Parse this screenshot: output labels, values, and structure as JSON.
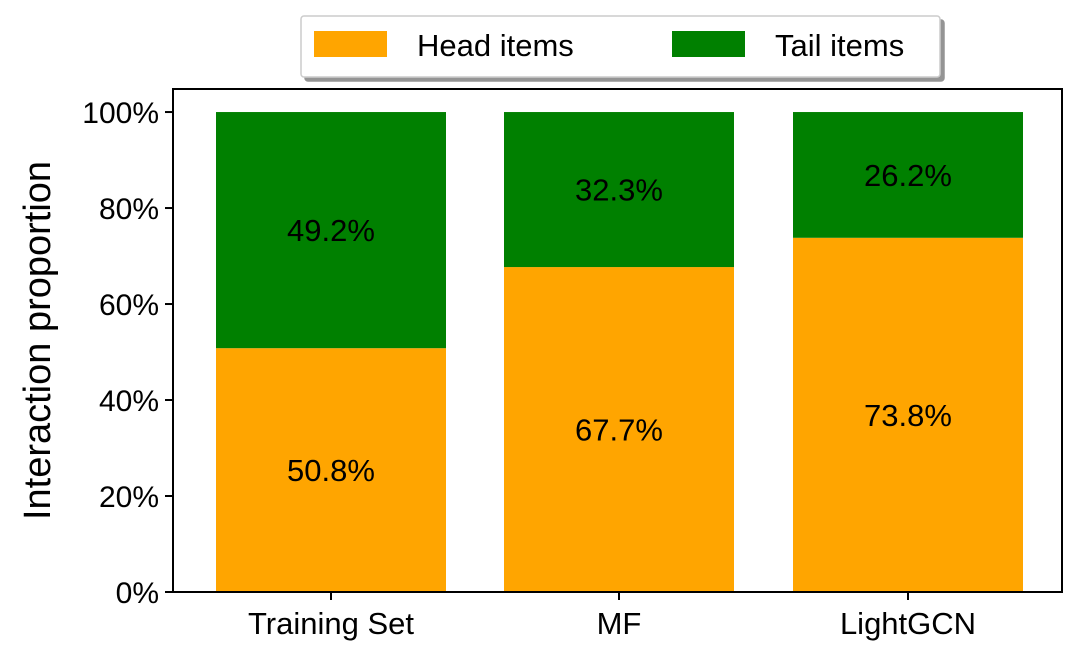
{
  "chart_data": {
    "type": "bar",
    "stacked": true,
    "categories": [
      "Training Set",
      "MF",
      "LightGCN"
    ],
    "series": [
      {
        "name": "Head items",
        "color": "#FFA500",
        "values": [
          50.8,
          67.7,
          73.8
        ],
        "labels": [
          "50.8%",
          "67.7%",
          "73.8%"
        ]
      },
      {
        "name": "Tail items",
        "color": "#008000",
        "values": [
          49.2,
          32.3,
          26.2
        ],
        "labels": [
          "49.2%",
          "32.3%",
          "26.2%"
        ]
      }
    ],
    "ylabel": "Interaction proportion",
    "xlabel": "",
    "ylim": [
      0,
      100
    ],
    "yticks": [
      0,
      20,
      40,
      60,
      80,
      100
    ],
    "ytick_labels": [
      "0%",
      "20%",
      "40%",
      "60%",
      "80%",
      "100%"
    ],
    "legend_position": "top-center, outside plot",
    "grid": false
  }
}
